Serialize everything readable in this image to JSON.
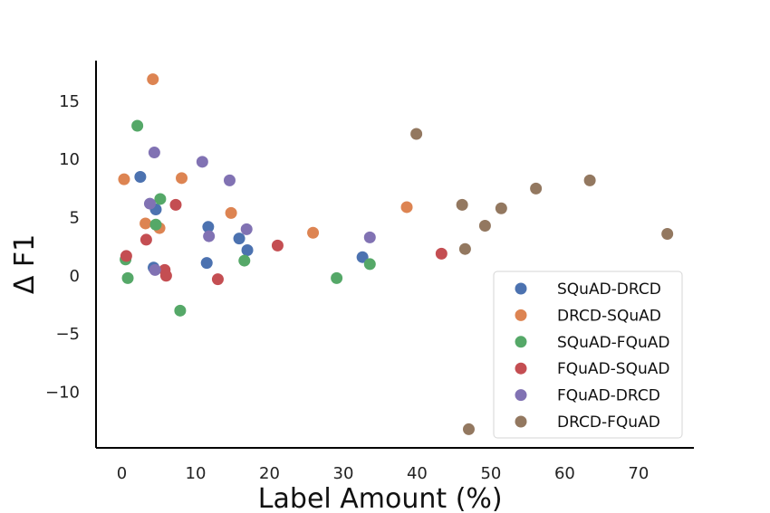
{
  "chart_data": {
    "type": "scatter",
    "xlabel": "Label Amount (%)",
    "ylabel": "Δ F1",
    "xlim": [
      -3.5,
      77.5
    ],
    "ylim": [
      -14.8,
      18.5
    ],
    "xticks": [
      0,
      10,
      20,
      30,
      40,
      50,
      60,
      70
    ],
    "yticks": [
      -10,
      -5,
      0,
      5,
      10,
      15
    ],
    "ytick_labels": [
      "−10",
      "−5",
      "0",
      "5",
      "10",
      "15"
    ],
    "grid": false,
    "legend_position": "lower-right",
    "series": [
      {
        "name": "SQuAD-DRCD",
        "color": "#4c72b0",
        "points": [
          [
            2.5,
            8.5
          ],
          [
            4.6,
            5.7
          ],
          [
            4.3,
            0.7
          ],
          [
            11.7,
            4.2
          ],
          [
            11.5,
            1.1
          ],
          [
            15.9,
            3.2
          ],
          [
            17.0,
            2.2
          ],
          [
            32.6,
            1.6
          ]
        ]
      },
      {
        "name": "DRCD-SQuAD",
        "color": "#dd8452",
        "points": [
          [
            0.3,
            8.3
          ],
          [
            4.2,
            16.9
          ],
          [
            3.2,
            4.5
          ],
          [
            5.1,
            4.1
          ],
          [
            8.1,
            8.4
          ],
          [
            14.8,
            5.4
          ],
          [
            25.9,
            3.7
          ],
          [
            38.6,
            5.9
          ]
        ]
      },
      {
        "name": "SQuAD-FQuAD",
        "color": "#55a868",
        "points": [
          [
            2.1,
            12.9
          ],
          [
            0.5,
            1.4
          ],
          [
            0.8,
            -0.2
          ],
          [
            4.6,
            4.4
          ],
          [
            5.2,
            6.6
          ],
          [
            7.9,
            -3.0
          ],
          [
            16.6,
            1.3
          ],
          [
            29.1,
            -0.2
          ],
          [
            33.6,
            1.0
          ]
        ]
      },
      {
        "name": "FQuAD-SQuAD",
        "color": "#c44e52",
        "points": [
          [
            0.6,
            1.7
          ],
          [
            3.3,
            3.1
          ],
          [
            5.8,
            0.5
          ],
          [
            6.0,
            0.0
          ],
          [
            7.3,
            6.1
          ],
          [
            13.0,
            -0.3
          ],
          [
            21.1,
            2.6
          ],
          [
            43.3,
            1.9
          ]
        ]
      },
      {
        "name": "FQuAD-DRCD",
        "color": "#8172b3",
        "points": [
          [
            4.4,
            10.6
          ],
          [
            3.8,
            6.2
          ],
          [
            4.5,
            0.5
          ],
          [
            10.9,
            9.8
          ],
          [
            11.8,
            3.4
          ],
          [
            14.6,
            8.2
          ],
          [
            16.9,
            4.0
          ],
          [
            33.6,
            3.3
          ]
        ]
      },
      {
        "name": "DRCD-FQuAD",
        "color": "#937860",
        "points": [
          [
            39.9,
            12.2
          ],
          [
            46.1,
            6.1
          ],
          [
            46.5,
            2.3
          ],
          [
            49.2,
            4.3
          ],
          [
            51.4,
            5.8
          ],
          [
            56.1,
            7.5
          ],
          [
            63.4,
            8.2
          ],
          [
            73.9,
            3.6
          ],
          [
            47.0,
            -13.2
          ]
        ]
      }
    ]
  }
}
